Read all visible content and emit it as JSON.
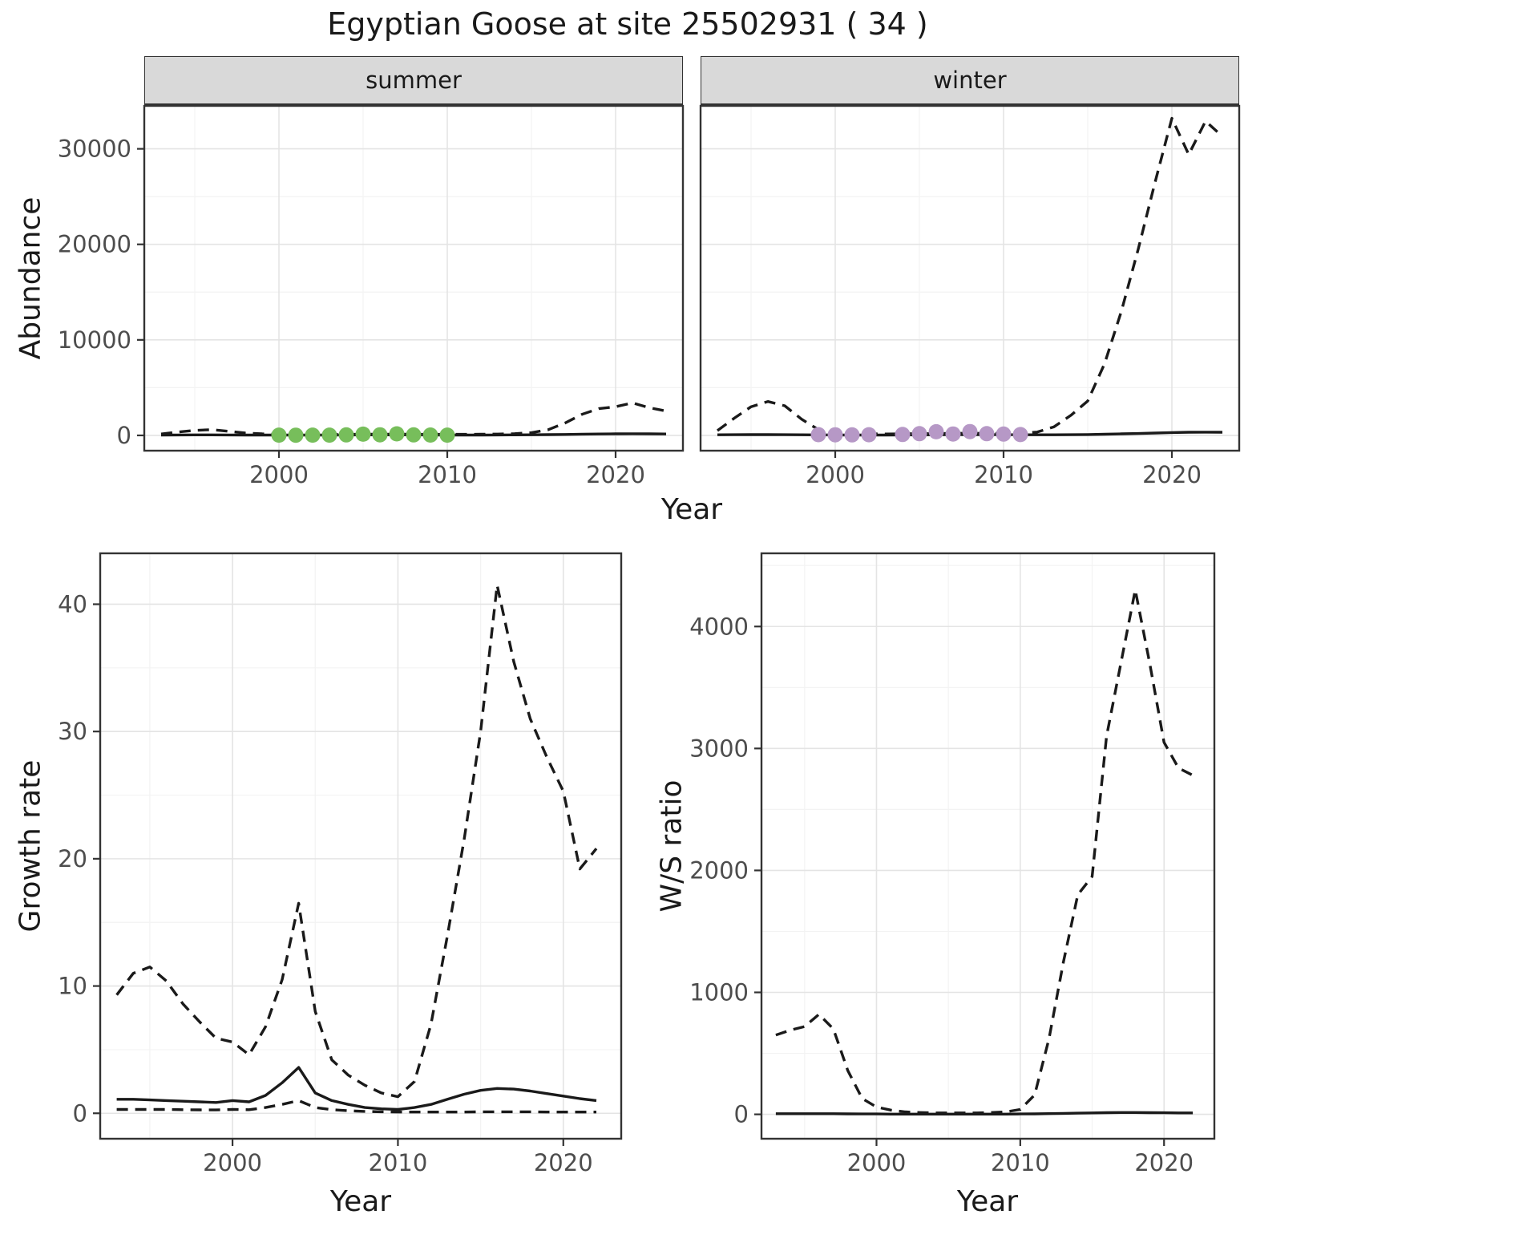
{
  "title": "Egyptian Goose at site 25502931 ( 34 )",
  "facets": {
    "summer": "summer",
    "winter": "winter"
  },
  "axes": {
    "abundance_ylabel": "Abundance",
    "year_xlabel": "Year",
    "growth_ylabel": "Growth rate",
    "ws_ylabel": "W/S ratio"
  },
  "colors": {
    "line": "#1a1a1a",
    "summer_point": "#77be5b",
    "winter_point": "#b698c6",
    "panel_bg": "#ffffff",
    "panel_border": "#333333",
    "grid_major": "#e4e4e4",
    "grid_minor": "#f3f3f3",
    "tick": "#333333",
    "tick_label": "#4d4d4d",
    "strip_bg": "#d9d9d9"
  },
  "chart_data": [
    {
      "id": "abundance-summer",
      "type": "line",
      "facet": "summer",
      "xlabel": "Year",
      "ylabel": "Abundance",
      "xlim": [
        1992,
        2024
      ],
      "ylim": [
        -1600,
        34500
      ],
      "xticks": [
        2000,
        2010,
        2020
      ],
      "yticks": [
        0,
        10000,
        20000,
        30000
      ],
      "x": [
        1993,
        1994,
        1995,
        1996,
        1997,
        1998,
        1999,
        2000,
        2001,
        2002,
        2003,
        2004,
        2005,
        2006,
        2007,
        2008,
        2009,
        2010,
        2011,
        2012,
        2013,
        2014,
        2015,
        2016,
        2017,
        2018,
        2019,
        2020,
        2021,
        2022,
        2023
      ],
      "series": [
        {
          "name": "upper-confidence-bound",
          "style": "dashed",
          "values": [
            150,
            350,
            520,
            600,
            430,
            250,
            160,
            120,
            100,
            100,
            100,
            110,
            120,
            120,
            130,
            120,
            110,
            110,
            110,
            120,
            140,
            180,
            280,
            600,
            1300,
            2200,
            2800,
            3000,
            3400,
            2900,
            2550
          ]
        },
        {
          "name": "estimate",
          "style": "solid",
          "values": [
            40,
            45,
            50,
            50,
            45,
            40,
            40,
            40,
            40,
            40,
            40,
            45,
            50,
            50,
            50,
            50,
            45,
            40,
            40,
            40,
            45,
            50,
            60,
            80,
            100,
            130,
            150,
            160,
            170,
            160,
            150
          ]
        }
      ],
      "points": {
        "name": "observed-counts-summer",
        "color_key": "summer_point",
        "x": [
          2000,
          2001,
          2002,
          2003,
          2004,
          2005,
          2006,
          2007,
          2008,
          2009,
          2010
        ],
        "y": [
          30,
          20,
          25,
          30,
          50,
          130,
          60,
          160,
          50,
          40,
          30
        ]
      }
    },
    {
      "id": "abundance-winter",
      "type": "line",
      "facet": "winter",
      "xlabel": "Year",
      "ylabel": "Abundance",
      "xlim": [
        1992,
        2024
      ],
      "ylim": [
        -1600,
        34500
      ],
      "xticks": [
        2000,
        2010,
        2020
      ],
      "yticks": [
        0,
        10000,
        20000,
        30000
      ],
      "x": [
        1993,
        1994,
        1995,
        1996,
        1997,
        1998,
        1999,
        2000,
        2001,
        2002,
        2003,
        2004,
        2005,
        2006,
        2007,
        2008,
        2009,
        2010,
        2011,
        2012,
        2013,
        2014,
        2015,
        2016,
        2017,
        2018,
        2019,
        2020,
        2021,
        2022,
        2023
      ],
      "series": [
        {
          "name": "upper-confidence-bound",
          "style": "dashed",
          "values": [
            500,
            1800,
            3000,
            3550,
            3100,
            1700,
            600,
            250,
            180,
            160,
            150,
            160,
            180,
            200,
            210,
            220,
            210,
            200,
            220,
            350,
            900,
            2100,
            3600,
            7500,
            13000,
            19500,
            26500,
            33200,
            29400,
            32900,
            31300
          ]
        },
        {
          "name": "estimate",
          "style": "solid",
          "values": [
            60,
            70,
            80,
            80,
            70,
            60,
            50,
            45,
            40,
            40,
            40,
            45,
            50,
            60,
            70,
            80,
            80,
            70,
            65,
            60,
            60,
            70,
            90,
            120,
            160,
            200,
            250,
            300,
            330,
            340,
            330
          ]
        }
      ],
      "points": {
        "name": "observed-counts-winter",
        "color_key": "winter_point",
        "x": [
          1999,
          2000,
          2001,
          2002,
          2004,
          2005,
          2006,
          2007,
          2008,
          2009,
          2010,
          2011
        ],
        "y": [
          80,
          60,
          50,
          70,
          100,
          180,
          380,
          150,
          400,
          180,
          140,
          90
        ]
      }
    },
    {
      "id": "growth-rate",
      "type": "line",
      "xlabel": "Year",
      "ylabel": "Growth rate",
      "xlim": [
        1992,
        2023.5
      ],
      "ylim": [
        -2,
        44
      ],
      "xticks": [
        2000,
        2010,
        2020
      ],
      "yticks": [
        0,
        10,
        20,
        30,
        40
      ],
      "x": [
        1993,
        1994,
        1995,
        1996,
        1997,
        1998,
        1999,
        2000,
        2001,
        2002,
        2003,
        2004,
        2005,
        2006,
        2007,
        2008,
        2009,
        2010,
        2011,
        2012,
        2013,
        2014,
        2015,
        2016,
        2017,
        2018,
        2019,
        2020,
        2021,
        2022
      ],
      "series": [
        {
          "name": "upper-confidence-bound",
          "style": "dashed",
          "values": [
            9.3,
            11.0,
            11.5,
            10.4,
            8.6,
            7.2,
            5.9,
            5.6,
            4.6,
            6.8,
            10.5,
            16.5,
            8.0,
            4.2,
            3.0,
            2.2,
            1.6,
            1.3,
            2.5,
            7.0,
            14.0,
            21.5,
            30.0,
            41.5,
            35.5,
            31.0,
            28.0,
            25.3,
            19.2,
            20.8
          ]
        },
        {
          "name": "estimate",
          "style": "solid",
          "values": [
            1.1,
            1.1,
            1.05,
            1.0,
            0.95,
            0.9,
            0.85,
            1.0,
            0.9,
            1.4,
            2.4,
            3.6,
            1.6,
            1.0,
            0.7,
            0.45,
            0.35,
            0.3,
            0.45,
            0.7,
            1.1,
            1.5,
            1.8,
            1.95,
            1.9,
            1.75,
            1.55,
            1.35,
            1.15,
            1.0
          ]
        },
        {
          "name": "lower-confidence-bound",
          "style": "dashed",
          "values": [
            0.3,
            0.3,
            0.3,
            0.3,
            0.28,
            0.27,
            0.26,
            0.3,
            0.28,
            0.45,
            0.7,
            1.0,
            0.45,
            0.28,
            0.2,
            0.15,
            0.12,
            0.1,
            0.1,
            0.1,
            0.1,
            0.1,
            0.12,
            0.12,
            0.12,
            0.12,
            0.1,
            0.1,
            0.1,
            0.1
          ]
        }
      ]
    },
    {
      "id": "ws-ratio",
      "type": "line",
      "xlabel": "Year",
      "ylabel": "W/S ratio",
      "xlim": [
        1992,
        2023.5
      ],
      "ylim": [
        -200,
        4600
      ],
      "xticks": [
        2000,
        2010,
        2020
      ],
      "yticks": [
        0,
        1000,
        2000,
        3000,
        4000
      ],
      "x": [
        1993,
        1994,
        1995,
        1996,
        1997,
        1998,
        1999,
        2000,
        2001,
        2002,
        2003,
        2004,
        2005,
        2006,
        2007,
        2008,
        2009,
        2010,
        2011,
        2012,
        2013,
        2014,
        2015,
        2016,
        2017,
        2018,
        2019,
        2020,
        2021,
        2022
      ],
      "series": [
        {
          "name": "upper-confidence-bound",
          "style": "dashed",
          "values": [
            650,
            690,
            720,
            820,
            700,
            360,
            130,
            60,
            35,
            20,
            15,
            12,
            12,
            12,
            12,
            15,
            20,
            40,
            160,
            620,
            1250,
            1800,
            1950,
            3100,
            3700,
            4300,
            3700,
            3050,
            2840,
            2780
          ]
        },
        {
          "name": "estimate",
          "style": "solid",
          "values": [
            5,
            5,
            5,
            5,
            5,
            4,
            3,
            3,
            2,
            2,
            2,
            2,
            2,
            2,
            2,
            2,
            2,
            3,
            4,
            6,
            8,
            10,
            12,
            14,
            15,
            15,
            14,
            13,
            12,
            12
          ]
        }
      ]
    }
  ]
}
